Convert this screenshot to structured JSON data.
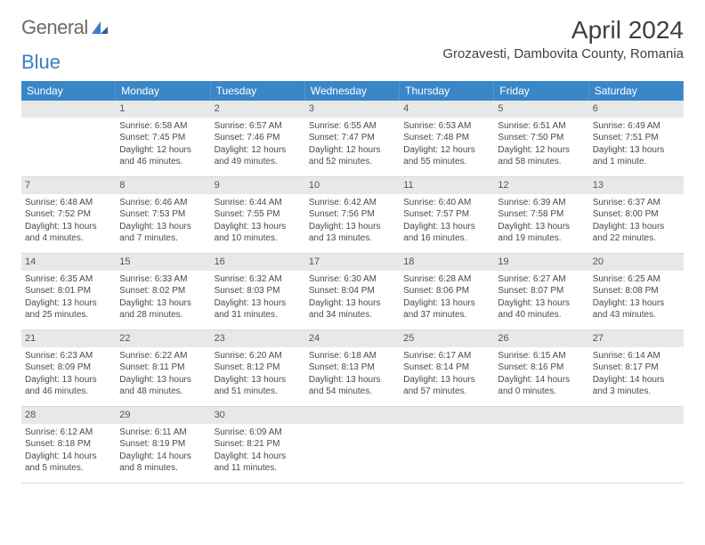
{
  "brand": {
    "part1": "General",
    "part2": "Blue"
  },
  "title": "April 2024",
  "location": "Grozavesti, Dambovita County, Romania",
  "colors": {
    "header_bg": "#3a87c7",
    "header_text": "#ffffff",
    "daynum_bg": "#e8e8e8",
    "body_text": "#4a4a4a",
    "divider": "#d9d9d9",
    "background": "#ffffff"
  },
  "weekdays": [
    "Sunday",
    "Monday",
    "Tuesday",
    "Wednesday",
    "Thursday",
    "Friday",
    "Saturday"
  ],
  "weeks": [
    [
      null,
      {
        "n": "1",
        "sr": "Sunrise: 6:58 AM",
        "ss": "Sunset: 7:45 PM",
        "dl": "Daylight: 12 hours and 46 minutes."
      },
      {
        "n": "2",
        "sr": "Sunrise: 6:57 AM",
        "ss": "Sunset: 7:46 PM",
        "dl": "Daylight: 12 hours and 49 minutes."
      },
      {
        "n": "3",
        "sr": "Sunrise: 6:55 AM",
        "ss": "Sunset: 7:47 PM",
        "dl": "Daylight: 12 hours and 52 minutes."
      },
      {
        "n": "4",
        "sr": "Sunrise: 6:53 AM",
        "ss": "Sunset: 7:48 PM",
        "dl": "Daylight: 12 hours and 55 minutes."
      },
      {
        "n": "5",
        "sr": "Sunrise: 6:51 AM",
        "ss": "Sunset: 7:50 PM",
        "dl": "Daylight: 12 hours and 58 minutes."
      },
      {
        "n": "6",
        "sr": "Sunrise: 6:49 AM",
        "ss": "Sunset: 7:51 PM",
        "dl": "Daylight: 13 hours and 1 minute."
      }
    ],
    [
      {
        "n": "7",
        "sr": "Sunrise: 6:48 AM",
        "ss": "Sunset: 7:52 PM",
        "dl": "Daylight: 13 hours and 4 minutes."
      },
      {
        "n": "8",
        "sr": "Sunrise: 6:46 AM",
        "ss": "Sunset: 7:53 PM",
        "dl": "Daylight: 13 hours and 7 minutes."
      },
      {
        "n": "9",
        "sr": "Sunrise: 6:44 AM",
        "ss": "Sunset: 7:55 PM",
        "dl": "Daylight: 13 hours and 10 minutes."
      },
      {
        "n": "10",
        "sr": "Sunrise: 6:42 AM",
        "ss": "Sunset: 7:56 PM",
        "dl": "Daylight: 13 hours and 13 minutes."
      },
      {
        "n": "11",
        "sr": "Sunrise: 6:40 AM",
        "ss": "Sunset: 7:57 PM",
        "dl": "Daylight: 13 hours and 16 minutes."
      },
      {
        "n": "12",
        "sr": "Sunrise: 6:39 AM",
        "ss": "Sunset: 7:58 PM",
        "dl": "Daylight: 13 hours and 19 minutes."
      },
      {
        "n": "13",
        "sr": "Sunrise: 6:37 AM",
        "ss": "Sunset: 8:00 PM",
        "dl": "Daylight: 13 hours and 22 minutes."
      }
    ],
    [
      {
        "n": "14",
        "sr": "Sunrise: 6:35 AM",
        "ss": "Sunset: 8:01 PM",
        "dl": "Daylight: 13 hours and 25 minutes."
      },
      {
        "n": "15",
        "sr": "Sunrise: 6:33 AM",
        "ss": "Sunset: 8:02 PM",
        "dl": "Daylight: 13 hours and 28 minutes."
      },
      {
        "n": "16",
        "sr": "Sunrise: 6:32 AM",
        "ss": "Sunset: 8:03 PM",
        "dl": "Daylight: 13 hours and 31 minutes."
      },
      {
        "n": "17",
        "sr": "Sunrise: 6:30 AM",
        "ss": "Sunset: 8:04 PM",
        "dl": "Daylight: 13 hours and 34 minutes."
      },
      {
        "n": "18",
        "sr": "Sunrise: 6:28 AM",
        "ss": "Sunset: 8:06 PM",
        "dl": "Daylight: 13 hours and 37 minutes."
      },
      {
        "n": "19",
        "sr": "Sunrise: 6:27 AM",
        "ss": "Sunset: 8:07 PM",
        "dl": "Daylight: 13 hours and 40 minutes."
      },
      {
        "n": "20",
        "sr": "Sunrise: 6:25 AM",
        "ss": "Sunset: 8:08 PM",
        "dl": "Daylight: 13 hours and 43 minutes."
      }
    ],
    [
      {
        "n": "21",
        "sr": "Sunrise: 6:23 AM",
        "ss": "Sunset: 8:09 PM",
        "dl": "Daylight: 13 hours and 46 minutes."
      },
      {
        "n": "22",
        "sr": "Sunrise: 6:22 AM",
        "ss": "Sunset: 8:11 PM",
        "dl": "Daylight: 13 hours and 48 minutes."
      },
      {
        "n": "23",
        "sr": "Sunrise: 6:20 AM",
        "ss": "Sunset: 8:12 PM",
        "dl": "Daylight: 13 hours and 51 minutes."
      },
      {
        "n": "24",
        "sr": "Sunrise: 6:18 AM",
        "ss": "Sunset: 8:13 PM",
        "dl": "Daylight: 13 hours and 54 minutes."
      },
      {
        "n": "25",
        "sr": "Sunrise: 6:17 AM",
        "ss": "Sunset: 8:14 PM",
        "dl": "Daylight: 13 hours and 57 minutes."
      },
      {
        "n": "26",
        "sr": "Sunrise: 6:15 AM",
        "ss": "Sunset: 8:16 PM",
        "dl": "Daylight: 14 hours and 0 minutes."
      },
      {
        "n": "27",
        "sr": "Sunrise: 6:14 AM",
        "ss": "Sunset: 8:17 PM",
        "dl": "Daylight: 14 hours and 3 minutes."
      }
    ],
    [
      {
        "n": "28",
        "sr": "Sunrise: 6:12 AM",
        "ss": "Sunset: 8:18 PM",
        "dl": "Daylight: 14 hours and 5 minutes."
      },
      {
        "n": "29",
        "sr": "Sunrise: 6:11 AM",
        "ss": "Sunset: 8:19 PM",
        "dl": "Daylight: 14 hours and 8 minutes."
      },
      {
        "n": "30",
        "sr": "Sunrise: 6:09 AM",
        "ss": "Sunset: 8:21 PM",
        "dl": "Daylight: 14 hours and 11 minutes."
      },
      null,
      null,
      null,
      null
    ]
  ]
}
